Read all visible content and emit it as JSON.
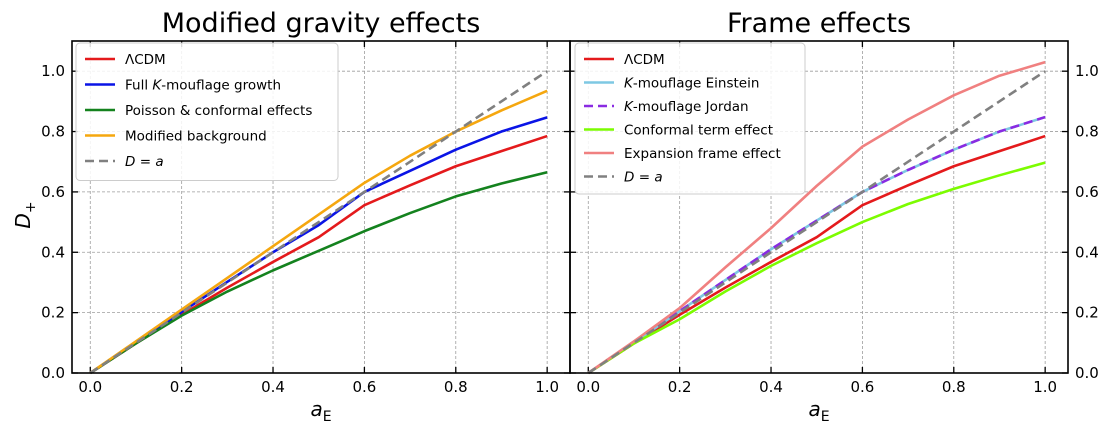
{
  "chart_data": [
    {
      "type": "line",
      "title": "Modified gravity effects",
      "xlabel": "a_E",
      "ylabel": "D_+",
      "xlim": [
        -0.04,
        1.05
      ],
      "ylim": [
        0.0,
        1.1
      ],
      "xticks": [
        "0.0",
        "0.2",
        "0.4",
        "0.6",
        "0.8",
        "1.0"
      ],
      "yticks": [
        "0.0",
        "0.2",
        "0.4",
        "0.6",
        "0.8",
        "1.0"
      ],
      "grid": true,
      "legend_position": "top-left",
      "series": [
        {
          "name": "ΛCDM",
          "name_parts": [
            {
              "t": "ΛCDM",
              "i": false
            }
          ],
          "color": "#e41a1c",
          "dash": "solid",
          "x": [
            0,
            0.1,
            0.2,
            0.3,
            0.4,
            0.5,
            0.6,
            0.7,
            0.8,
            0.9,
            1.0
          ],
          "y": [
            0,
            0.098,
            0.193,
            0.283,
            0.368,
            0.45,
            0.556,
            0.622,
            0.685,
            0.735,
            0.785
          ]
        },
        {
          "name": "Full K-mouflage growth",
          "name_parts": [
            {
              "t": "Full ",
              "i": false
            },
            {
              "t": "K",
              "i": true
            },
            {
              "t": "-mouflage growth",
              "i": false
            }
          ],
          "color": "#0a14e6",
          "dash": "solid",
          "x": [
            0,
            0.1,
            0.2,
            0.3,
            0.4,
            0.5,
            0.6,
            0.7,
            0.8,
            0.9,
            1.0
          ],
          "y": [
            0,
            0.1,
            0.202,
            0.302,
            0.4,
            0.49,
            0.6,
            0.67,
            0.74,
            0.8,
            0.847
          ]
        },
        {
          "name": "Poisson & conformal effects",
          "name_parts": [
            {
              "t": "Poisson & conformal effects",
              "i": false
            }
          ],
          "color": "#14821e",
          "dash": "solid",
          "x": [
            0,
            0.1,
            0.2,
            0.3,
            0.4,
            0.5,
            0.6,
            0.7,
            0.8,
            0.9,
            1.0
          ],
          "y": [
            0,
            0.098,
            0.19,
            0.27,
            0.34,
            0.405,
            0.47,
            0.53,
            0.585,
            0.628,
            0.665
          ]
        },
        {
          "name": "Modified background",
          "name_parts": [
            {
              "t": "Modified background",
              "i": false
            }
          ],
          "color": "#f5a70f",
          "dash": "solid",
          "x": [
            0,
            0.1,
            0.2,
            0.3,
            0.4,
            0.5,
            0.6,
            0.7,
            0.8,
            0.9,
            1.0
          ],
          "y": [
            0,
            0.105,
            0.21,
            0.315,
            0.42,
            0.525,
            0.63,
            0.72,
            0.8,
            0.87,
            0.935
          ]
        },
        {
          "name": "D = a",
          "name_parts": [
            {
              "t": "D",
              "i": true
            },
            {
              "t": " = ",
              "i": false
            },
            {
              "t": "a",
              "i": true
            }
          ],
          "color": "#808080",
          "dash": "dashed",
          "x": [
            0,
            1.0
          ],
          "y": [
            0,
            1.0
          ]
        }
      ]
    },
    {
      "type": "line",
      "title": "Frame effects",
      "xlabel": "a_E",
      "ylabel": "",
      "xlim": [
        -0.04,
        1.05
      ],
      "ylim": [
        0.0,
        1.1
      ],
      "xticks": [
        "0.0",
        "0.2",
        "0.4",
        "0.6",
        "0.8",
        "1.0"
      ],
      "yticks": [
        "0.0",
        "0.2",
        "0.4",
        "0.6",
        "0.8",
        "1.0"
      ],
      "grid": true,
      "legend_position": "top-left",
      "series": [
        {
          "name": "ΛCDM",
          "name_parts": [
            {
              "t": "ΛCDM",
              "i": false
            }
          ],
          "color": "#e41a1c",
          "dash": "solid",
          "x": [
            0,
            0.1,
            0.2,
            0.3,
            0.4,
            0.5,
            0.6,
            0.7,
            0.8,
            0.9,
            1.0
          ],
          "y": [
            0,
            0.098,
            0.193,
            0.283,
            0.368,
            0.45,
            0.556,
            0.622,
            0.685,
            0.735,
            0.785
          ]
        },
        {
          "name": "K-mouflage Einstein",
          "name_parts": [
            {
              "t": "K",
              "i": true
            },
            {
              "t": "-mouflage Einstein",
              "i": false
            }
          ],
          "color": "#7ec8e3",
          "dash": "solid",
          "x": [
            0,
            0.1,
            0.2,
            0.3,
            0.4,
            0.5,
            0.6,
            0.7,
            0.8,
            0.9,
            1.0
          ],
          "y": [
            0,
            0.1,
            0.205,
            0.308,
            0.41,
            0.505,
            0.6,
            0.673,
            0.74,
            0.8,
            0.848
          ]
        },
        {
          "name": "K-mouflage Jordan",
          "name_parts": [
            {
              "t": "K",
              "i": true
            },
            {
              "t": "-mouflage Jordan",
              "i": false
            }
          ],
          "color": "#8a2be2",
          "dash": "dashed",
          "x": [
            0,
            0.1,
            0.2,
            0.3,
            0.4,
            0.5,
            0.6,
            0.7,
            0.8,
            0.9,
            1.0
          ],
          "y": [
            0,
            0.1,
            0.205,
            0.308,
            0.41,
            0.505,
            0.6,
            0.673,
            0.74,
            0.8,
            0.848
          ]
        },
        {
          "name": "Conformal term effect",
          "name_parts": [
            {
              "t": "Conformal term effect",
              "i": false
            }
          ],
          "color": "#7cfc00",
          "dash": "solid",
          "x": [
            0,
            0.1,
            0.2,
            0.3,
            0.4,
            0.5,
            0.6,
            0.7,
            0.8,
            0.9,
            1.0
          ],
          "y": [
            0,
            0.098,
            0.178,
            0.27,
            0.355,
            0.43,
            0.5,
            0.56,
            0.61,
            0.655,
            0.697
          ]
        },
        {
          "name": "Expansion frame effect",
          "name_parts": [
            {
              "t": "Expansion frame effect",
              "i": false
            }
          ],
          "color": "#f08080",
          "dash": "solid",
          "x": [
            0,
            0.1,
            0.2,
            0.3,
            0.4,
            0.5,
            0.6,
            0.7,
            0.8,
            0.9,
            1.0
          ],
          "y": [
            0,
            0.105,
            0.215,
            0.35,
            0.48,
            0.62,
            0.75,
            0.84,
            0.92,
            0.985,
            1.03
          ]
        },
        {
          "name": "D = a",
          "name_parts": [
            {
              "t": "D",
              "i": true
            },
            {
              "t": " = ",
              "i": false
            },
            {
              "t": "a",
              "i": true
            }
          ],
          "color": "#808080",
          "dash": "dashed",
          "x": [
            0,
            1.0
          ],
          "y": [
            0,
            1.0
          ]
        }
      ]
    }
  ]
}
